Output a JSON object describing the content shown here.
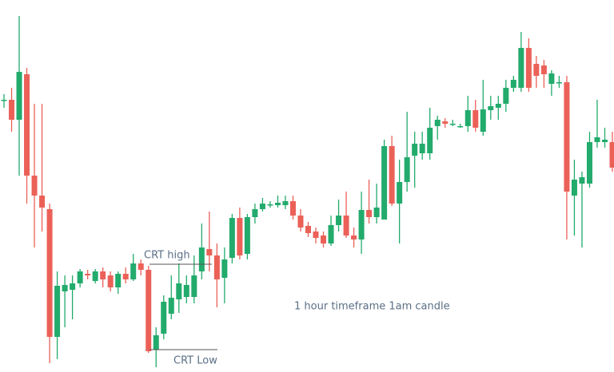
{
  "chart_data": {
    "type": "candlestick",
    "up_color": "#22ab6c",
    "down_color": "#eb6158",
    "ylim": [
      0,
      466
    ],
    "open": [
      341,
      341,
      316,
      373,
      246,
      221,
      204,
      44,
      101,
      103,
      111,
      123,
      114,
      126,
      121,
      106,
      123,
      116,
      136,
      128,
      28,
      48,
      73,
      91,
      94,
      94,
      126,
      154,
      146,
      118,
      143,
      193,
      148,
      194,
      204,
      209,
      209,
      209,
      214,
      196,
      183,
      176,
      171,
      161,
      184,
      196,
      171,
      166,
      203,
      194,
      191,
      283,
      211,
      238,
      271,
      274,
      274,
      308,
      314,
      311,
      308,
      308,
      328,
      301,
      328,
      331,
      336,
      356,
      356,
      406,
      386,
      384,
      361,
      363,
      363,
      221,
      236,
      236,
      288,
      288,
      288
    ],
    "high": [
      348,
      356,
      446,
      381,
      336,
      336,
      211,
      126,
      121,
      121,
      129,
      128,
      129,
      131,
      126,
      126,
      131,
      148,
      141,
      133,
      56,
      96,
      121,
      136,
      121,
      146,
      186,
      201,
      161,
      156,
      198,
      206,
      198,
      211,
      218,
      214,
      221,
      221,
      221,
      204,
      188,
      181,
      176,
      196,
      216,
      226,
      181,
      226,
      241,
      236,
      291,
      296,
      266,
      326,
      301,
      301,
      331,
      321,
      318,
      316,
      311,
      346,
      341,
      366,
      346,
      346,
      366,
      371,
      426,
      418,
      396,
      391,
      378,
      371,
      371,
      266,
      251,
      301,
      341,
      306,
      301
    ],
    "low": [
      331,
      301,
      246,
      211,
      156,
      176,
      11,
      16,
      56,
      66,
      106,
      116,
      111,
      106,
      101,
      98,
      111,
      114,
      121,
      24,
      6,
      41,
      66,
      74,
      86,
      86,
      116,
      126,
      81,
      86,
      136,
      141,
      141,
      186,
      201,
      206,
      206,
      204,
      191,
      176,
      169,
      161,
      156,
      158,
      176,
      168,
      156,
      148,
      186,
      186,
      191,
      208,
      161,
      226,
      231,
      266,
      266,
      291,
      306,
      308,
      306,
      301,
      301,
      296,
      316,
      316,
      326,
      351,
      351,
      351,
      356,
      356,
      346,
      356,
      166,
      171,
      156,
      231,
      281,
      281,
      251
    ],
    "close": [
      341,
      316,
      376,
      246,
      221,
      206,
      44,
      108,
      109,
      111,
      126,
      121,
      126,
      116,
      106,
      123,
      116,
      136,
      128,
      26,
      46,
      88,
      93,
      111,
      109,
      121,
      156,
      146,
      116,
      141,
      193,
      146,
      194,
      204,
      211,
      210,
      212,
      214,
      196,
      181,
      174,
      168,
      161,
      184,
      196,
      171,
      166,
      203,
      194,
      206,
      283,
      211,
      238,
      269,
      286,
      286,
      306,
      316,
      311,
      311,
      308,
      328,
      306,
      329,
      333,
      336,
      356,
      366,
      406,
      356,
      371,
      373,
      374,
      363,
      226,
      241,
      244,
      288,
      294,
      291,
      256
    ],
    "levels": [
      {
        "label": "CRT high",
        "value": 135
      },
      {
        "label": "CRT Low",
        "value": 28
      }
    ],
    "annotation": "1 hour timeframe 1am candle"
  }
}
